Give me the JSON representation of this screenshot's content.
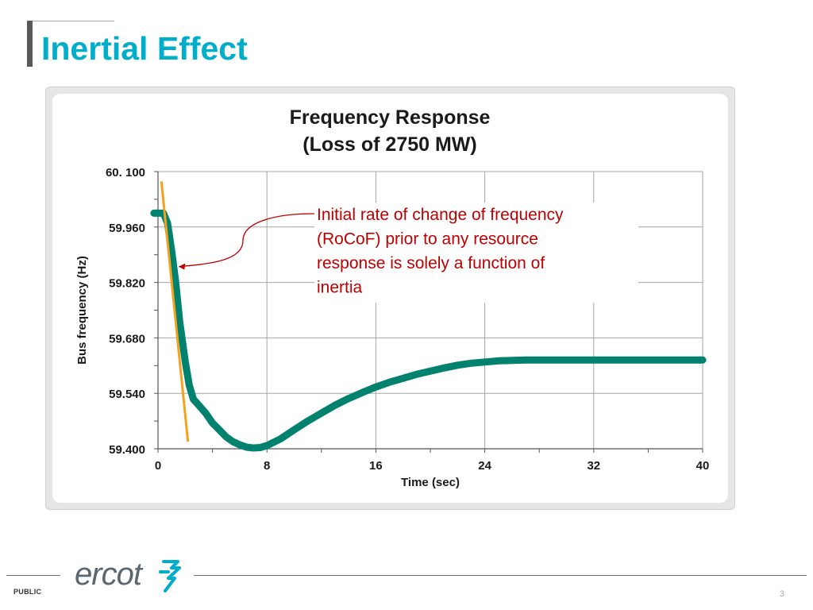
{
  "slide": {
    "title": "Inertial Effect",
    "classification": "PUBLIC",
    "page_number": "3",
    "logo_text": "ercot"
  },
  "chart_data": {
    "type": "line",
    "title_line1": "Frequency Response",
    "title_line2": "(Loss of 2750 MW)",
    "xlabel": "Time (sec)",
    "ylabel": "Bus frequency (Hz)",
    "xlim": [
      0,
      40
    ],
    "ylim": [
      59.4,
      60.1
    ],
    "x_ticks": [
      0,
      8,
      16,
      24,
      32,
      40
    ],
    "y_ticks": [
      60.1,
      59.96,
      59.82,
      59.68,
      59.54,
      59.4
    ],
    "y_tick_labels": [
      "60. 100",
      "59.960",
      "59.820",
      "59.680",
      "59.540",
      "59.400"
    ],
    "x_tick_labels": [
      "0",
      "8",
      "16",
      "24",
      "32",
      "40"
    ],
    "grid": true,
    "series": [
      {
        "name": "Bus frequency",
        "color": "#00826e",
        "x": [
          -0.3,
          0.4,
          0.7,
          1.0,
          1.3,
          1.6,
          2.0,
          2.3,
          2.6,
          3.0,
          3.5,
          4.0,
          4.5,
          5.0,
          5.5,
          6.0,
          6.5,
          7.0,
          7.5,
          8.0,
          9.0,
          10.0,
          11.0,
          12.0,
          13.0,
          14.0,
          15.0,
          16.0,
          17.0,
          18.0,
          19.0,
          20.0,
          21.0,
          22.0,
          23.0,
          24.0,
          25.0,
          26.0,
          27.0,
          28.0,
          30.0,
          32.0,
          34.0,
          36.0,
          38.0,
          40.0
        ],
        "y": [
          59.995,
          59.995,
          59.97,
          59.9,
          59.82,
          59.72,
          59.62,
          59.56,
          59.525,
          59.51,
          59.49,
          59.465,
          59.448,
          59.43,
          59.418,
          59.41,
          59.404,
          59.402,
          59.403,
          59.408,
          59.425,
          59.448,
          59.47,
          59.49,
          59.51,
          59.527,
          59.542,
          59.556,
          59.568,
          59.578,
          59.588,
          59.596,
          59.604,
          59.611,
          59.616,
          59.619,
          59.622,
          59.623,
          59.624,
          59.624,
          59.624,
          59.624,
          59.624,
          59.624,
          59.624,
          59.624
        ]
      }
    ],
    "trend_line": {
      "name": "Initial RoCoF",
      "color": "#f4a21c",
      "x": [
        0.25,
        2.2
      ],
      "y": [
        60.075,
        59.418
      ]
    },
    "annotation": {
      "text": "Initial rate of change of frequency (RoCoF) prior to any resource response is solely a function of inertia",
      "lines": [
        "Initial rate of change of frequency",
        "(RoCoF) prior to any resource",
        "response is solely a function of",
        "inertia"
      ],
      "color": "#c00000",
      "points_to": {
        "x": 1.3,
        "y": 59.86
      }
    }
  }
}
